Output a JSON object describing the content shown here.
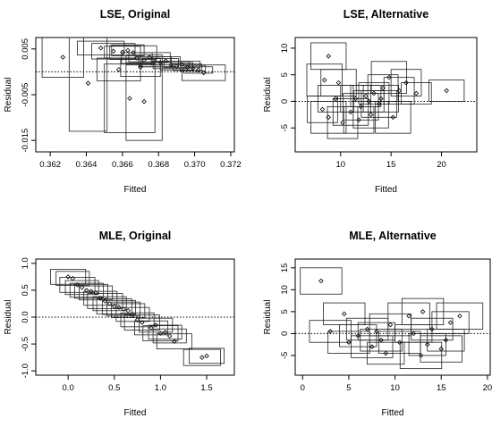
{
  "chart_data": [
    {
      "type": "scatter",
      "title": "LSE, Original",
      "xlabel": "Fitted",
      "ylabel": "Residual",
      "xlim": [
        0.3612,
        0.3722
      ],
      "ylim": [
        -0.0175,
        0.0075
      ],
      "xticks": [
        0.362,
        0.364,
        0.366,
        0.368,
        0.37,
        0.372
      ],
      "xtick_labels": [
        "0.362",
        "0.364",
        "0.366",
        "0.368",
        "0.370",
        "0.372"
      ],
      "yticks": [
        -0.015,
        -0.005,
        0.005
      ],
      "ytick_labels": [
        "-0.015",
        "-0.005",
        "0.005"
      ],
      "refline_y": 0,
      "points": [
        {
          "x": 0.3627,
          "y": 0.0032,
          "w": 0.0023,
          "h": 0.0088
        },
        {
          "x": 0.3641,
          "y": -0.0025,
          "w": 0.0021,
          "h": 0.021
        },
        {
          "x": 0.3648,
          "y": 0.0052,
          "w": 0.0026,
          "h": 0.003
        },
        {
          "x": 0.3655,
          "y": 0.0045,
          "w": 0.0024,
          "h": 0.0034
        },
        {
          "x": 0.366,
          "y": 0.0043,
          "w": 0.002,
          "h": 0.0026
        },
        {
          "x": 0.3663,
          "y": 0.0047,
          "w": 0.0018,
          "h": 0.0024
        },
        {
          "x": 0.3666,
          "y": 0.0042,
          "w": 0.0026,
          "h": 0.003
        },
        {
          "x": 0.3668,
          "y": 0.003,
          "w": 0.0017,
          "h": 0.0024
        },
        {
          "x": 0.3672,
          "y": 0.0026,
          "w": 0.002,
          "h": 0.0022
        },
        {
          "x": 0.3675,
          "y": 0.0032,
          "w": 0.0023,
          "h": 0.002
        },
        {
          "x": 0.3678,
          "y": 0.0022,
          "w": 0.0018,
          "h": 0.0022
        },
        {
          "x": 0.3681,
          "y": 0.002,
          "w": 0.002,
          "h": 0.0018
        },
        {
          "x": 0.3684,
          "y": 0.0024,
          "w": 0.0016,
          "h": 0.0018
        },
        {
          "x": 0.3687,
          "y": 0.0015,
          "w": 0.002,
          "h": 0.0016
        },
        {
          "x": 0.369,
          "y": 0.0012,
          "w": 0.0018,
          "h": 0.0016
        },
        {
          "x": 0.3693,
          "y": 0.0016,
          "w": 0.002,
          "h": 0.0014
        },
        {
          "x": 0.3696,
          "y": 0.001,
          "w": 0.0016,
          "h": 0.0014
        },
        {
          "x": 0.3699,
          "y": 0.0008,
          "w": 0.0014,
          "h": 0.0012
        },
        {
          "x": 0.3702,
          "y": 0.0004,
          "w": 0.0016,
          "h": 0.0014
        },
        {
          "x": 0.3705,
          "y": -0.0002,
          "w": 0.0024,
          "h": 0.0034
        },
        {
          "x": 0.3664,
          "y": -0.0058,
          "w": 0.0028,
          "h": 0.015
        },
        {
          "x": 0.3672,
          "y": -0.0065,
          "w": 0.002,
          "h": 0.017
        },
        {
          "x": 0.3658,
          "y": 0.0005,
          "w": 0.0024,
          "h": 0.005
        },
        {
          "x": 0.367,
          "y": 0.001,
          "w": 0.0022,
          "h": 0.004
        }
      ]
    },
    {
      "type": "scatter",
      "title": "LSE, Alternative",
      "xlabel": "Fitted",
      "ylabel": "Residual",
      "xlim": [
        5.5,
        23.5
      ],
      "ylim": [
        -9.5,
        12
      ],
      "xticks": [
        10,
        15,
        20
      ],
      "xtick_labels": [
        "10",
        "15",
        "20"
      ],
      "yticks": [
        -5,
        0,
        5,
        10
      ],
      "ytick_labels": [
        "-5",
        "0",
        "5",
        "10"
      ],
      "refline_y": 0,
      "points": [
        {
          "x": 8.8,
          "y": 8.5,
          "w": 3.5,
          "h": 5
        },
        {
          "x": 8.4,
          "y": 4.0,
          "w": 3.5,
          "h": 6
        },
        {
          "x": 8.2,
          "y": -1.5,
          "w": 3.0,
          "h": 5
        },
        {
          "x": 8.8,
          "y": -3.0,
          "w": 3.5,
          "h": 6
        },
        {
          "x": 9.8,
          "y": 3.5,
          "w": 3.5,
          "h": 5
        },
        {
          "x": 10.2,
          "y": -4.0,
          "w": 3.0,
          "h": 6
        },
        {
          "x": 11.0,
          "y": -2.0,
          "w": 3.5,
          "h": 5
        },
        {
          "x": 11.5,
          "y": 0.5,
          "w": 3.0,
          "h": 5
        },
        {
          "x": 12.0,
          "y": -1.0,
          "w": 3.5,
          "h": 5
        },
        {
          "x": 12.5,
          "y": 1.0,
          "w": 3.0,
          "h": 4
        },
        {
          "x": 13.0,
          "y": -2.5,
          "w": 3.5,
          "h": 5
        },
        {
          "x": 13.3,
          "y": 1.5,
          "w": 3.0,
          "h": 4
        },
        {
          "x": 13.8,
          "y": -0.5,
          "w": 3.5,
          "h": 5
        },
        {
          "x": 14.2,
          "y": 2.5,
          "w": 3.0,
          "h": 5
        },
        {
          "x": 14.8,
          "y": 4.5,
          "w": 3.5,
          "h": 6
        },
        {
          "x": 15.2,
          "y": -3.0,
          "w": 3.5,
          "h": 6
        },
        {
          "x": 15.8,
          "y": 2.0,
          "w": 3.0,
          "h": 5
        },
        {
          "x": 16.5,
          "y": 3.5,
          "w": 3.0,
          "h": 5
        },
        {
          "x": 17.5,
          "y": 1.5,
          "w": 3.0,
          "h": 4
        },
        {
          "x": 20.5,
          "y": 2.0,
          "w": 3.5,
          "h": 4
        },
        {
          "x": 9.5,
          "y": 0.5,
          "w": 3.5,
          "h": 5
        },
        {
          "x": 12.8,
          "y": 0.0,
          "w": 3.0,
          "h": 4
        },
        {
          "x": 11.8,
          "y": -3.5,
          "w": 3.0,
          "h": 5
        },
        {
          "x": 14.0,
          "y": 0.5,
          "w": 3.5,
          "h": 5
        }
      ]
    },
    {
      "type": "scatter",
      "title": "MLE, Original",
      "xlabel": "Fitted",
      "ylabel": "Residual",
      "xlim": [
        -0.35,
        1.8
      ],
      "ylim": [
        -1.08,
        1.08
      ],
      "xticks": [
        0.0,
        0.5,
        1.0,
        1.5
      ],
      "xtick_labels": [
        "0.0",
        "0.5",
        "1.0",
        "1.5"
      ],
      "yticks": [
        -1.0,
        -0.5,
        0.0,
        0.5,
        1.0
      ],
      "ytick_labels": [
        "-1.0",
        "-0.5",
        "0.0",
        "0.5",
        "1.0"
      ],
      "refline_y": 0,
      "points": [
        {
          "x": 0.0,
          "y": 0.75,
          "w": 0.38,
          "h": 0.28
        },
        {
          "x": 0.05,
          "y": 0.72,
          "w": 0.36,
          "h": 0.26
        },
        {
          "x": 0.1,
          "y": 0.6,
          "w": 0.38,
          "h": 0.28
        },
        {
          "x": 0.15,
          "y": 0.55,
          "w": 0.36,
          "h": 0.26
        },
        {
          "x": 0.2,
          "y": 0.5,
          "w": 0.36,
          "h": 0.26
        },
        {
          "x": 0.25,
          "y": 0.48,
          "w": 0.36,
          "h": 0.26
        },
        {
          "x": 0.3,
          "y": 0.45,
          "w": 0.36,
          "h": 0.26
        },
        {
          "x": 0.4,
          "y": 0.3,
          "w": 0.38,
          "h": 0.28
        },
        {
          "x": 0.45,
          "y": 0.25,
          "w": 0.36,
          "h": 0.26
        },
        {
          "x": 0.5,
          "y": 0.2,
          "w": 0.38,
          "h": 0.28
        },
        {
          "x": 0.55,
          "y": 0.18,
          "w": 0.36,
          "h": 0.26
        },
        {
          "x": 0.6,
          "y": 0.15,
          "w": 0.36,
          "h": 0.26
        },
        {
          "x": 0.65,
          "y": 0.12,
          "w": 0.36,
          "h": 0.26
        },
        {
          "x": 0.7,
          "y": 0.05,
          "w": 0.36,
          "h": 0.26
        },
        {
          "x": 0.8,
          "y": -0.1,
          "w": 0.38,
          "h": 0.28
        },
        {
          "x": 0.9,
          "y": -0.2,
          "w": 0.36,
          "h": 0.26
        },
        {
          "x": 1.0,
          "y": -0.3,
          "w": 0.38,
          "h": 0.28
        },
        {
          "x": 1.05,
          "y": -0.28,
          "w": 0.36,
          "h": 0.26
        },
        {
          "x": 1.1,
          "y": -0.35,
          "w": 0.36,
          "h": 0.26
        },
        {
          "x": 1.15,
          "y": -0.45,
          "w": 0.38,
          "h": 0.28
        },
        {
          "x": 1.45,
          "y": -0.75,
          "w": 0.4,
          "h": 0.3
        },
        {
          "x": 1.5,
          "y": -0.72,
          "w": 0.38,
          "h": 0.28
        },
        {
          "x": 0.35,
          "y": 0.35,
          "w": 0.36,
          "h": 0.26
        },
        {
          "x": 0.75,
          "y": -0.05,
          "w": 0.36,
          "h": 0.26
        },
        {
          "x": 0.95,
          "y": -0.15,
          "w": 0.36,
          "h": 0.26
        }
      ]
    },
    {
      "type": "scatter",
      "title": "MLE, Alternative",
      "xlabel": "Fitted",
      "ylabel": "Residual",
      "xlim": [
        -0.8,
        20.3
      ],
      "ylim": [
        -9.5,
        17
      ],
      "xticks": [
        0,
        5,
        10,
        15,
        20
      ],
      "xtick_labels": [
        "0",
        "5",
        "10",
        "15",
        "20"
      ],
      "yticks": [
        -5,
        0,
        5,
        10,
        15
      ],
      "ytick_labels": [
        "-5",
        "0",
        "5",
        "10",
        "15"
      ],
      "refline_y": 0,
      "points": [
        {
          "x": 2.0,
          "y": 12.0,
          "w": 4.5,
          "h": 6
        },
        {
          "x": 4.5,
          "y": 4.5,
          "w": 4.5,
          "h": 5
        },
        {
          "x": 3.0,
          "y": 0.5,
          "w": 4.5,
          "h": 5
        },
        {
          "x": 5.0,
          "y": -2.0,
          "w": 4.5,
          "h": 5
        },
        {
          "x": 6.0,
          "y": -0.5,
          "w": 4.0,
          "h": 5
        },
        {
          "x": 7.0,
          "y": 1.0,
          "w": 4.5,
          "h": 5
        },
        {
          "x": 7.5,
          "y": -3.0,
          "w": 4.5,
          "h": 5
        },
        {
          "x": 8.0,
          "y": 0.5,
          "w": 4.0,
          "h": 4
        },
        {
          "x": 8.5,
          "y": -1.5,
          "w": 4.5,
          "h": 5
        },
        {
          "x": 9.0,
          "y": -4.5,
          "w": 4.0,
          "h": 5
        },
        {
          "x": 9.5,
          "y": 2.0,
          "w": 4.5,
          "h": 5
        },
        {
          "x": 10.5,
          "y": -2.0,
          "w": 4.5,
          "h": 5
        },
        {
          "x": 11.5,
          "y": 4.0,
          "w": 4.5,
          "h": 6
        },
        {
          "x": 12.0,
          "y": 0.0,
          "w": 4.0,
          "h": 4
        },
        {
          "x": 12.8,
          "y": -5.0,
          "w": 4.5,
          "h": 6
        },
        {
          "x": 13.0,
          "y": 5.0,
          "w": 4.5,
          "h": 6
        },
        {
          "x": 13.5,
          "y": -2.5,
          "w": 4.0,
          "h": 5
        },
        {
          "x": 14.0,
          "y": 1.0,
          "w": 4.5,
          "h": 5
        },
        {
          "x": 15.0,
          "y": -3.5,
          "w": 4.5,
          "h": 6
        },
        {
          "x": 16.0,
          "y": 2.5,
          "w": 4.0,
          "h": 5
        },
        {
          "x": 17.0,
          "y": 4.0,
          "w": 5.0,
          "h": 6
        },
        {
          "x": 15.5,
          "y": -1.5,
          "w": 4.0,
          "h": 5
        }
      ]
    }
  ]
}
